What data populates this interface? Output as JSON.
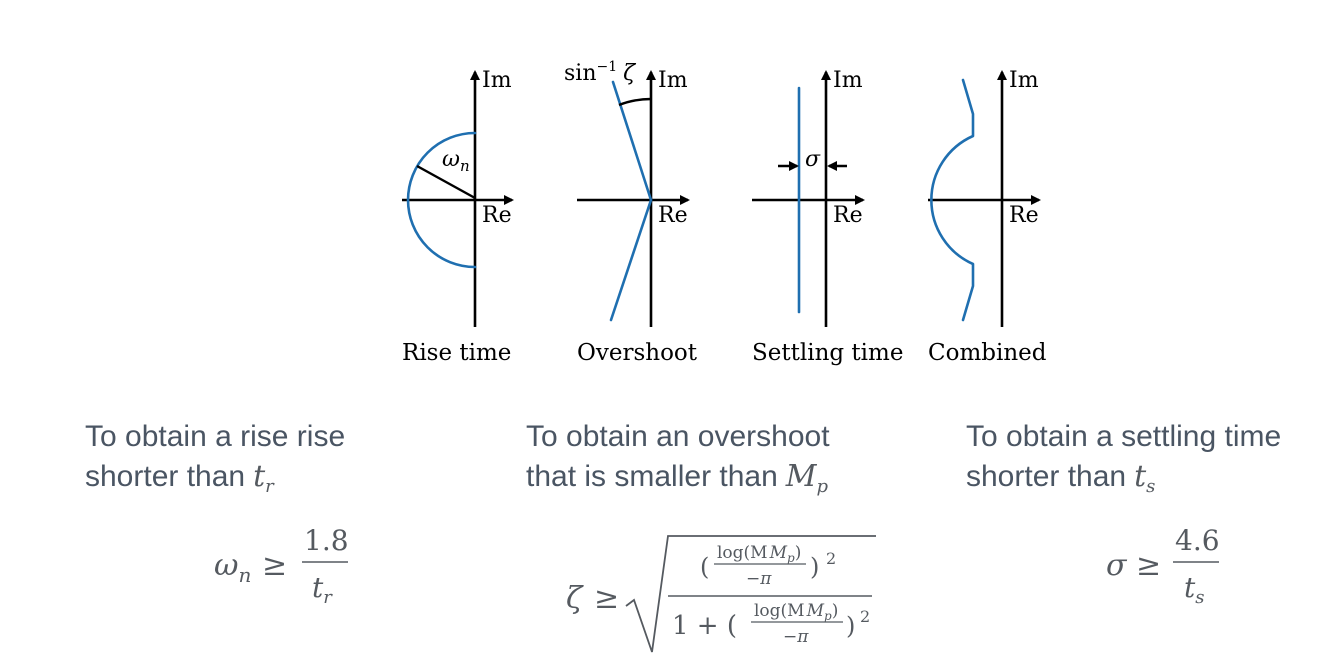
{
  "diagram": {
    "axis_im": "Im",
    "axis_re": "Re",
    "panels": [
      {
        "caption": "Rise time",
        "annotation": "ω",
        "annotation_sub": "n"
      },
      {
        "caption": "Overshoot",
        "annotation": "sin",
        "annotation_sup": "−1",
        "annotation_var": "ζ"
      },
      {
        "caption": "Settling time",
        "annotation": "σ"
      },
      {
        "caption": "Combined"
      }
    ]
  },
  "conditions": [
    {
      "line1": "To obtain a rise rise",
      "line2": "shorter than",
      "var": "t",
      "var_sub": "r",
      "formula": {
        "lhs": "ω",
        "lhs_sub": "n",
        "op": "≥",
        "num": "1.8",
        "den": "t",
        "den_sub": "r"
      }
    },
    {
      "line1": "To obtain an overshoot",
      "line2": "that is smaller than",
      "var": "M",
      "var_sub": "p",
      "formula": {
        "lhs": "ζ",
        "op": "≥",
        "log": "log(M",
        "log_sub": "p",
        "log_close": ")",
        "neg_pi": "−π",
        "one_plus": "1 + (",
        "sq": "2"
      }
    },
    {
      "line1": "To obtain a settling time",
      "line2": "shorter than",
      "var": "t",
      "var_sub": "s",
      "formula": {
        "lhs": "σ",
        "op": "≥",
        "num": "4.6",
        "den": "t",
        "den_sub": "s"
      }
    }
  ]
}
